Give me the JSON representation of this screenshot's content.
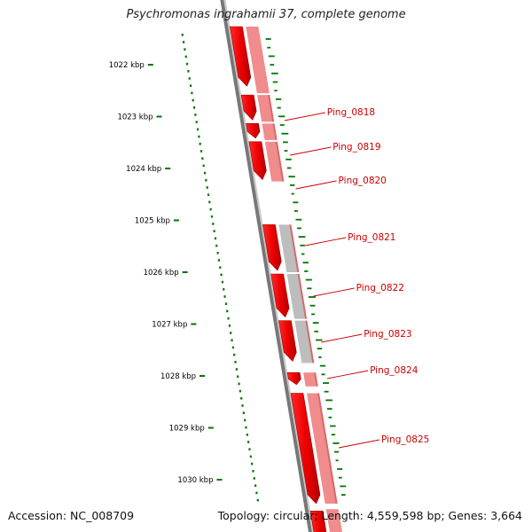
{
  "title": "Psychromonas ingrahamii 37, complete genome",
  "footer": {
    "accession": "Accession: NC_008709",
    "summary": "Topology: circular; Length: 4,559,598 bp; Genes: 3,664"
  },
  "ticks": [
    "1022 kbp",
    "1023 kbp",
    "1024 kbp",
    "1025 kbp",
    "1026 kbp",
    "1027 kbp",
    "1028 kbp",
    "1029 kbp",
    "1030 kbp"
  ],
  "genes": [
    {
      "label": "Ping_0818",
      "start": 1022.55,
      "end": 1023.1,
      "strand": "forward",
      "cog_color": "#f08c8c"
    },
    {
      "label": "Ping_0819",
      "start": 1023.1,
      "end": 1023.45,
      "strand": "reverse",
      "cog_color": "#f08c8c"
    },
    {
      "label": "Ping_0820",
      "start": 1023.45,
      "end": 1024.25,
      "strand": "reverse",
      "cog_color": "#f08c8c"
    },
    {
      "label": "Ping_0821",
      "start": 1025.05,
      "end": 1026.0,
      "strand": "reverse",
      "cog_color": "#bdbdbd"
    },
    {
      "label": "Ping_0822",
      "start": 1026.0,
      "end": 1026.9,
      "strand": "reverse",
      "cog_color": "#bdbdbd"
    },
    {
      "label": "Ping_0823",
      "start": 1026.9,
      "end": 1027.75,
      "strand": "reverse",
      "cog_color": "#bdbdbd"
    },
    {
      "label": "Ping_0824",
      "start": 1027.9,
      "end": 1028.2,
      "strand": "reverse",
      "cog_color": "#f08c8c"
    },
    {
      "label": "Ping_0825",
      "start": 1028.3,
      "end": 1030.5,
      "strand": "reverse",
      "cog_color": "#f08c8c"
    }
  ],
  "colors": {
    "cds": "#ee0000",
    "backbone": "#777777",
    "gc_skew": "#007700",
    "label": "#cc0000",
    "tick": "#007700"
  }
}
